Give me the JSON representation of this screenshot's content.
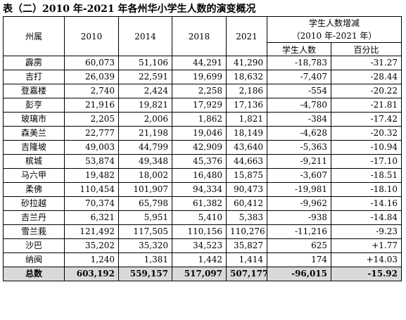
{
  "title": "表（二）2010 年-2021 年各州华小学生人数的演变概况",
  "table": {
    "col_state": "州属",
    "years": [
      "2010",
      "2014",
      "2018",
      "2021"
    ],
    "change_header_line1": "学生人数增减",
    "change_header_line2": "（2010 年-2021 年）",
    "sub_students": "学生人数",
    "sub_percent": "百分比",
    "rows": [
      {
        "state": "霹雳",
        "y2010": "60,073",
        "y2014": "51,106",
        "y2018": "44,291",
        "y2021": "41,290",
        "change": "-18,783",
        "pct": "-31.27"
      },
      {
        "state": "吉打",
        "y2010": "26,039",
        "y2014": "22,591",
        "y2018": "19,699",
        "y2021": "18,632",
        "change": "-7,407",
        "pct": "-28.44"
      },
      {
        "state": "登嘉楼",
        "y2010": "2,740",
        "y2014": "2,424",
        "y2018": "2,258",
        "y2021": "2,186",
        "change": "-554",
        "pct": "-20.22"
      },
      {
        "state": "彭亨",
        "y2010": "21,916",
        "y2014": "19,821",
        "y2018": "17,929",
        "y2021": "17,136",
        "change": "-4,780",
        "pct": "-21.81"
      },
      {
        "state": "玻璃市",
        "y2010": "2,205",
        "y2014": "2,006",
        "y2018": "1,862",
        "y2021": "1,821",
        "change": "-384",
        "pct": "-17.42"
      },
      {
        "state": "森美兰",
        "y2010": "22,777",
        "y2014": "21,198",
        "y2018": "19,046",
        "y2021": "18,149",
        "change": "-4,628",
        "pct": "-20.32"
      },
      {
        "state": "吉隆坡",
        "y2010": "49,003",
        "y2014": "44,799",
        "y2018": "42,909",
        "y2021": "43,640",
        "change": "-5,363",
        "pct": "-10.94"
      },
      {
        "state": "槟城",
        "y2010": "53,874",
        "y2014": "49,348",
        "y2018": "45,376",
        "y2021": "44,663",
        "change": "-9,211",
        "pct": "-17.10"
      },
      {
        "state": "马六甲",
        "y2010": "19,482",
        "y2014": "18,002",
        "y2018": "16,480",
        "y2021": "15,875",
        "change": "-3,607",
        "pct": "-18.51"
      },
      {
        "state": "柔佛",
        "y2010": "110,454",
        "y2014": "101,907",
        "y2018": "94,334",
        "y2021": "90,473",
        "change": "-19,981",
        "pct": "-18.10"
      },
      {
        "state": "砂拉越",
        "y2010": "70,374",
        "y2014": "65,798",
        "y2018": "61,382",
        "y2021": "60,412",
        "change": "-9,962",
        "pct": "-14.16"
      },
      {
        "state": "吉兰丹",
        "y2010": "6,321",
        "y2014": "5,951",
        "y2018": "5,410",
        "y2021": "5,383",
        "change": "-938",
        "pct": "-14.84"
      },
      {
        "state": "雪兰莪",
        "y2010": "121,492",
        "y2014": "117,505",
        "y2018": "110,156",
        "y2021": "110,276",
        "change": "-11,216",
        "pct": "-9.23"
      },
      {
        "state": "沙巴",
        "y2010": "35,202",
        "y2014": "35,320",
        "y2018": "34,523",
        "y2021": "35,827",
        "change": "625",
        "pct": "+1.77"
      },
      {
        "state": "纳闽",
        "y2010": "1,240",
        "y2014": "1,381",
        "y2018": "1,442",
        "y2021": "1,414",
        "change": "174",
        "pct": "+14.03"
      },
      {
        "state": "总数",
        "y2010": "603,192",
        "y2014": "559,157",
        "y2018": "517,097",
        "y2021": "507,177",
        "change": "-96,015",
        "pct": "-15.92"
      }
    ]
  }
}
